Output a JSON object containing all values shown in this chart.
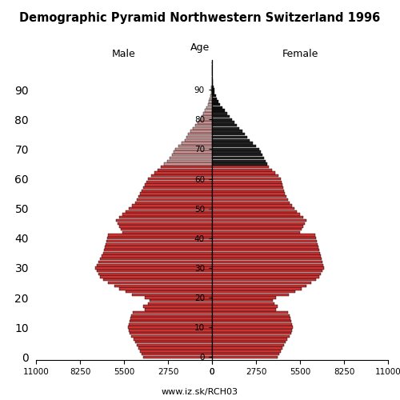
{
  "title": "Demographic Pyramid Northwestern Switzerland 1996",
  "xlabel_left": "Male",
  "xlabel_right": "Female",
  "ylabel": "Age",
  "source": "www.iz.sk/RCH03",
  "xlim": 11000,
  "xticks": [
    0,
    2750,
    5500,
    8250,
    11000
  ],
  "bar_height": 0.9,
  "bar_edgecolor": "#000000",
  "bar_linewidth": 0.3,
  "ages": [
    0,
    1,
    2,
    3,
    4,
    5,
    6,
    7,
    8,
    9,
    10,
    11,
    12,
    13,
    14,
    15,
    16,
    17,
    18,
    19,
    20,
    21,
    22,
    23,
    24,
    25,
    26,
    27,
    28,
    29,
    30,
    31,
    32,
    33,
    34,
    35,
    36,
    37,
    38,
    39,
    40,
    41,
    42,
    43,
    44,
    45,
    46,
    47,
    48,
    49,
    50,
    51,
    52,
    53,
    54,
    55,
    56,
    57,
    58,
    59,
    60,
    61,
    62,
    63,
    64,
    65,
    66,
    67,
    68,
    69,
    70,
    71,
    72,
    73,
    74,
    75,
    76,
    77,
    78,
    79,
    80,
    81,
    82,
    83,
    84,
    85,
    86,
    87,
    88,
    89,
    90,
    91,
    92,
    93,
    94,
    95,
    96,
    97,
    98,
    99
  ],
  "male": [
    4300,
    4400,
    4500,
    4600,
    4700,
    4800,
    4900,
    5050,
    5150,
    5200,
    5250,
    5200,
    5150,
    5100,
    5050,
    4950,
    4200,
    4300,
    4000,
    3900,
    4200,
    5000,
    5400,
    5800,
    6100,
    6500,
    6800,
    7000,
    7100,
    7200,
    7300,
    7200,
    7100,
    7000,
    6900,
    6800,
    6750,
    6700,
    6650,
    6600,
    6550,
    6500,
    5600,
    5700,
    5800,
    5900,
    6000,
    5800,
    5600,
    5400,
    5200,
    5000,
    4800,
    4700,
    4600,
    4500,
    4400,
    4300,
    4200,
    4100,
    4000,
    3800,
    3600,
    3400,
    3200,
    3000,
    2800,
    2650,
    2500,
    2400,
    2300,
    2100,
    1900,
    1700,
    1600,
    1500,
    1350,
    1200,
    1050,
    900,
    750,
    650,
    550,
    450,
    360,
    270,
    210,
    160,
    110,
    75,
    55,
    35,
    20,
    10,
    5,
    3,
    2,
    1,
    0,
    0
  ],
  "female": [
    4100,
    4200,
    4300,
    4400,
    4500,
    4600,
    4700,
    4850,
    4950,
    5000,
    5050,
    5000,
    4950,
    4900,
    4850,
    4750,
    4000,
    4100,
    3900,
    3800,
    4000,
    4800,
    5200,
    5600,
    5900,
    6200,
    6500,
    6700,
    6800,
    6900,
    7000,
    6950,
    6900,
    6850,
    6800,
    6750,
    6700,
    6650,
    6600,
    6550,
    6500,
    6450,
    5500,
    5600,
    5700,
    5800,
    5900,
    5700,
    5500,
    5300,
    5150,
    5000,
    4850,
    4750,
    4650,
    4550,
    4500,
    4450,
    4400,
    4350,
    4300,
    4150,
    3950,
    3750,
    3550,
    3450,
    3350,
    3250,
    3150,
    3050,
    2950,
    2750,
    2550,
    2350,
    2200,
    2050,
    1900,
    1700,
    1550,
    1400,
    1250,
    1100,
    950,
    800,
    650,
    510,
    410,
    310,
    230,
    170,
    125,
    85,
    55,
    32,
    18,
    10,
    5,
    2,
    1,
    0
  ]
}
